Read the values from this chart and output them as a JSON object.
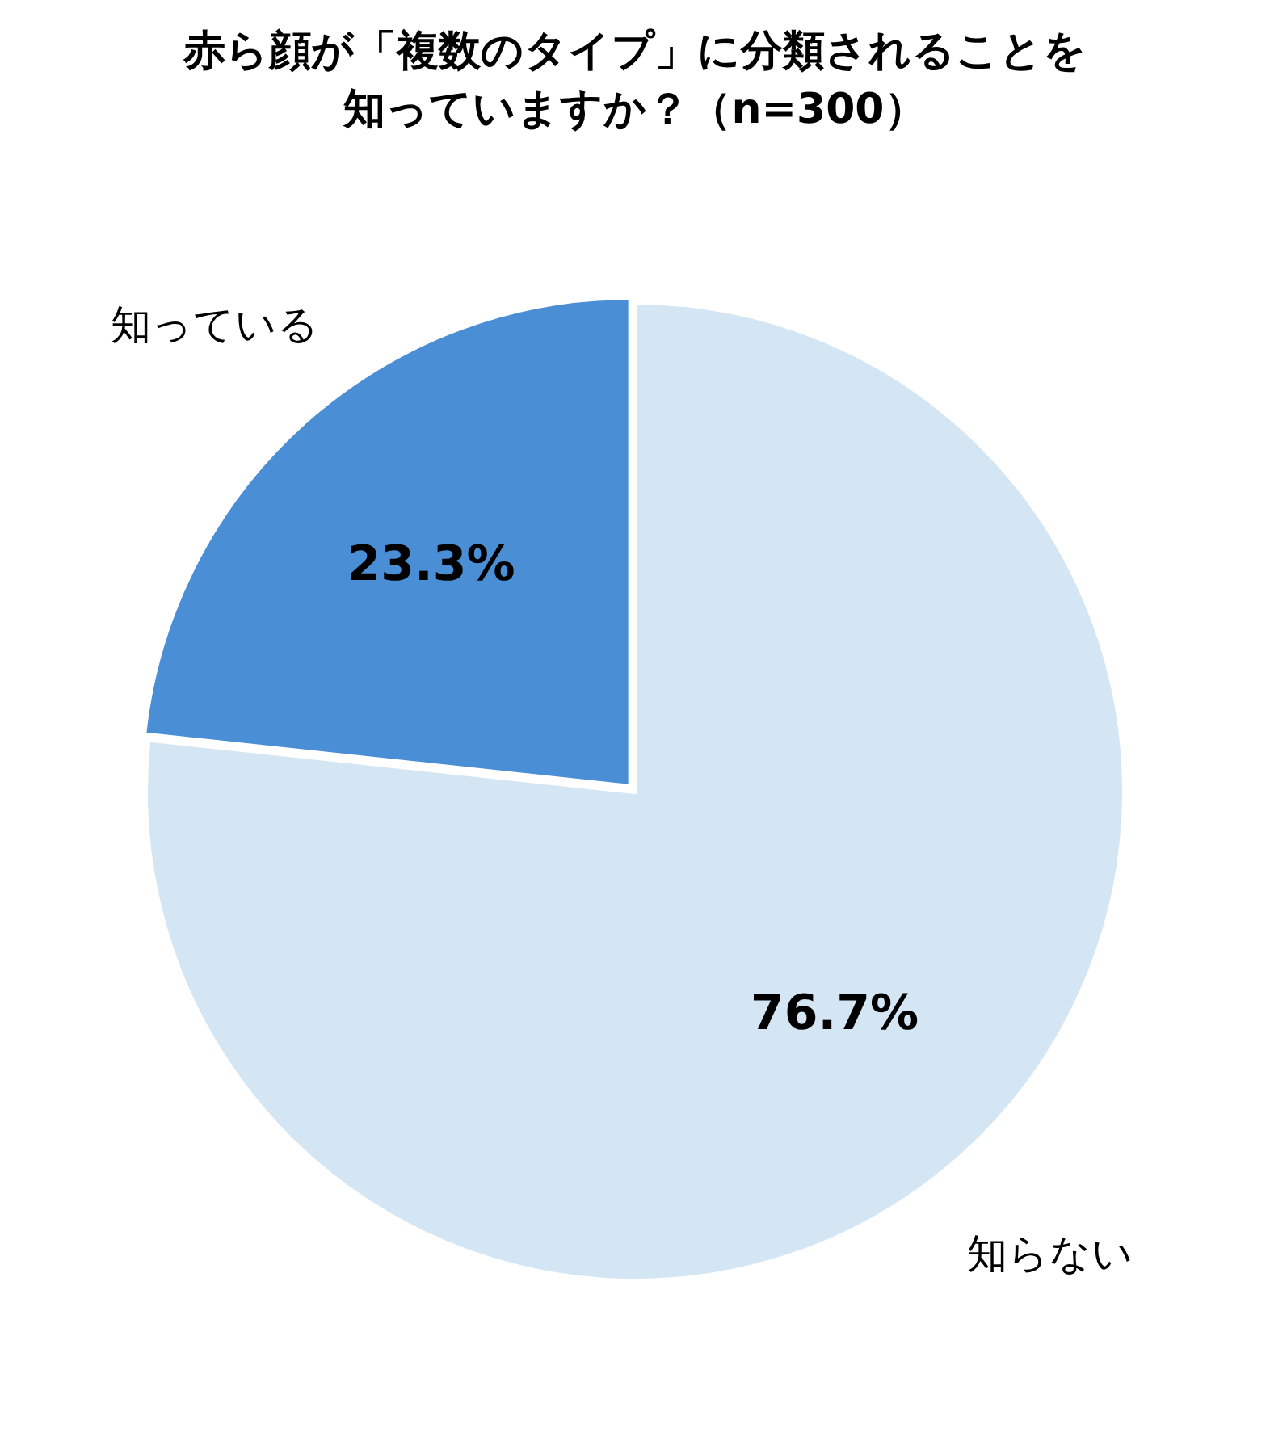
{
  "chart_data": {
    "type": "pie",
    "title": "赤ら顔が「複数のタイプ」に分類されることを知っていますか？（n=300）",
    "categories": [
      "知らない",
      "知っている"
    ],
    "values": [
      76.7,
      23.3
    ],
    "colors": [
      "#d4e6f4",
      "#4a8fd6"
    ],
    "value_labels": [
      "76.7%",
      "23.3%"
    ]
  }
}
